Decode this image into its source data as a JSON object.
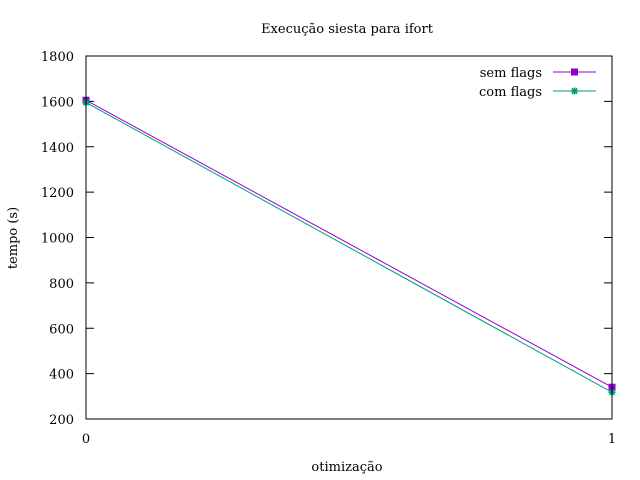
{
  "chart_data": {
    "type": "line",
    "title": "Execução siesta para ifort",
    "xlabel": "otimização",
    "ylabel": "tempo (s)",
    "x": [
      0,
      1
    ],
    "xlim": [
      0,
      1
    ],
    "xticks": [
      "0",
      "1"
    ],
    "ylim": [
      200,
      1800
    ],
    "yticks": [
      "200",
      "400",
      "600",
      "800",
      "1000",
      "1200",
      "1400",
      "1600",
      "1800"
    ],
    "grid": false,
    "legend_position": "top-right",
    "series": [
      {
        "name": "sem flags",
        "values": [
          1605,
          340
        ],
        "color": "#9400d3",
        "marker": "square"
      },
      {
        "name": "com flags",
        "values": [
          1595,
          318
        ],
        "color": "#009e73",
        "marker": "asterisk"
      }
    ]
  }
}
